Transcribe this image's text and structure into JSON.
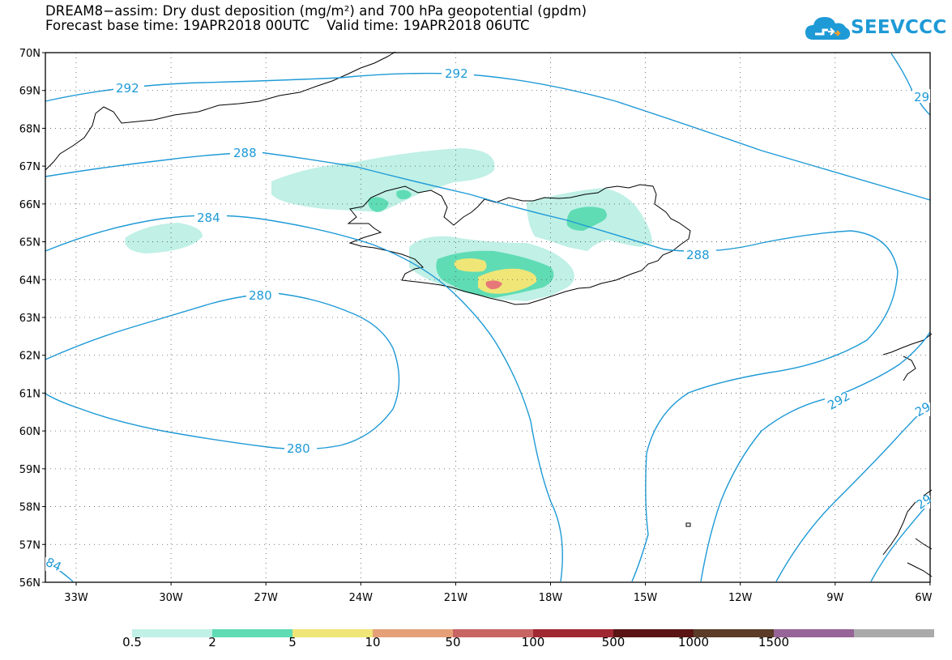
{
  "header": {
    "title_line1": "DREAM8−assim: Dry dust deposition (mg/m²) and 700 hPa geopotential (gpdm)",
    "title_line2": "Forecast base time: 19APR2018 00UTC    Valid time: 19APR2018 06UTC"
  },
  "logo": {
    "text": "SEEVCCC",
    "color": "#1e9ad6"
  },
  "map": {
    "lat_labels": [
      "70N",
      "69N",
      "68N",
      "67N",
      "66N",
      "65N",
      "64N",
      "63N",
      "62N",
      "61N",
      "60N",
      "59N",
      "58N",
      "57N",
      "56N"
    ],
    "lon_labels": [
      "33W",
      "30W",
      "27W",
      "24W",
      "21W",
      "18W",
      "15W",
      "12W",
      "9W",
      "6W"
    ],
    "contour_color": "#1e9ad6",
    "contour_labels": [
      "292",
      "292",
      "29",
      "288",
      "288",
      "284",
      "280",
      "280",
      "292",
      "29",
      "84",
      "29"
    ]
  },
  "legend": {
    "colors": [
      "#c0f0e6",
      "#5fdcb4",
      "#f0e678",
      "#e6a078",
      "#c86464",
      "#a02832",
      "#5a1414",
      "#5a3c28",
      "#966496",
      "#aaaaaa"
    ],
    "labels": [
      "0.5",
      "2",
      "5",
      "10",
      "50",
      "100",
      "500",
      "1000",
      "1500"
    ]
  }
}
